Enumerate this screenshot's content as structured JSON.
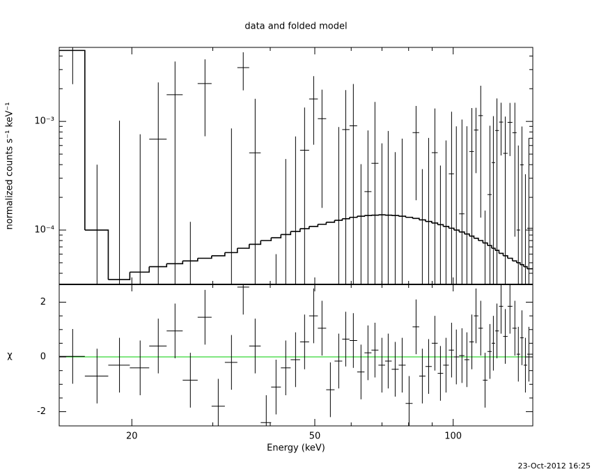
{
  "chart_data": [
    {
      "type": "errorbar-step",
      "title": "data and folded model",
      "ylabel": "normalized counts s⁻¹ keV⁻¹",
      "log_y": true,
      "ylim": [
        3.16e-05,
        0.0048
      ],
      "yticks": [
        {
          "value": 0.0001,
          "label": "10⁻⁴"
        },
        {
          "value": 0.001,
          "label": "10⁻³"
        }
      ],
      "yminor": [
        4e-05,
        5e-05,
        6e-05,
        7e-05,
        8e-05,
        9e-05,
        0.0002,
        0.0003,
        0.0004,
        0.0005,
        0.0006,
        0.0007,
        0.0008,
        0.0009,
        0.002,
        0.003,
        0.004
      ],
      "color": "#000000",
      "x": [
        14.87,
        16.8,
        18.8,
        20.85,
        22.83,
        24.83,
        26.81,
        28.85,
        30.83,
        32.94,
        34.94,
        37.09,
        39.21,
        41.18,
        43.23,
        45.41,
        47.51,
        49.72,
        51.84,
        54.06,
        56.37,
        58.38,
        60.65,
        63.02,
        65.26,
        67.58,
        69.98,
        72.22,
        74.79,
        77.45,
        80.19,
        83.04,
        85.68,
        88.43,
        91.24,
        93.82,
        96.47,
        99.2,
        101.6,
        104.5,
        107.1,
        109.8,
        112.1,
        114.8,
        117.3,
        120.2,
        122.3,
        124.5,
        127.1,
        129.8,
        132.9,
        136.2,
        138.6,
        141.1,
        143.6,
        146.1
      ],
      "rate": [
        0.0045,
        -0.0006,
        -0.000385,
        -0.000439,
        0.000686,
        0.00176,
        -0.000331,
        0.00223,
        -0.000158,
        -0.000138,
        0.00313,
        0.000514,
        -0.00016,
        -0.0002,
        -0.000149,
        2.7e-05,
        0.000543,
        0.00161,
        0.00106,
        -0.000482,
        -1.2e-05,
        0.000842,
        0.000911,
        -0.000196,
        0.000226,
        0.000412,
        -7.2e-05,
        1.7e-05,
        -0.000179,
        -0.000106,
        -0.000379,
        0.000788,
        -0.000436,
        -0.000195,
        0.000516,
        -0.000308,
        -0.000132,
        0.000329,
        0.0001,
        0.000141,
        2e-06,
        0.000528,
        0.000834,
        0.00113,
        -0.000349,
        0.000212,
        0.000418,
        0.000825,
        0.000986,
        0.000508,
        0.00098,
        0.000787,
        0.0001,
        0.000398,
        -7.4e-05,
        0.000104
      ],
      "rate_err": [
        0.0023,
        0.001,
        0.0014,
        0.0012,
        0.0016,
        0.0018,
        0.00045,
        0.0015,
        0.00012,
        0.001,
        0.0012,
        0.0011,
        0.0001,
        0.00026,
        0.0006,
        0.0007,
        0.0008,
        0.001,
        0.0009,
        0.0005,
        0.0009,
        0.0011,
        0.0013,
        0.0006,
        0.0006,
        0.0011,
        0.0007,
        0.0008,
        0.0007,
        0.0008,
        0.0003,
        0.0006,
        0.0008,
        0.0009,
        0.0008,
        0.0007,
        0.0008,
        0.0009,
        0.0008,
        0.0009,
        0.0009,
        0.0008,
        0.0005,
        0.001,
        0.0005,
        0.0007,
        0.0007,
        0.0008,
        0.0005,
        0.0006,
        0.0005,
        0.0007,
        0.0005,
        0.0005,
        0.0004,
        0.0006
      ],
      "model": [
        0.0045,
        0.0001,
        3.5e-05,
        4.1e-05,
        4.6e-05,
        4.9e-05,
        5.2e-05,
        5.5e-05,
        5.8e-05,
        6.2e-05,
        6.8e-05,
        7.4e-05,
        8e-05,
        8.5e-05,
        9.1e-05,
        9.7e-05,
        0.000103,
        0.000108,
        0.000113,
        0.000118,
        0.000123,
        0.000127,
        0.000131,
        0.000134,
        0.000136,
        0.000137,
        0.000138,
        0.000137,
        0.000136,
        0.000134,
        0.000131,
        0.000128,
        0.000124,
        0.00012,
        0.000116,
        0.000112,
        0.000108,
        0.000104,
        0.0001,
        9.6e-05,
        9.2e-05,
        8.8e-05,
        8.4e-05,
        8e-05,
        7.6e-05,
        7.2e-05,
        6.8e-05,
        6.5e-05,
        6.1e-05,
        5.8e-05,
        5.5e-05,
        5.2e-05,
        5e-05,
        4.8e-05,
        4.6e-05,
        4.4e-05
      ]
    },
    {
      "type": "residual",
      "ylabel": "χ",
      "xlabel": "Energy (keV)",
      "log_x": true,
      "xlim": [
        13.9,
        149
      ],
      "xticks": [
        20,
        50,
        100
      ],
      "xminor": [
        30,
        40,
        60,
        70,
        80,
        90
      ],
      "ylim": [
        -2.52,
        2.65
      ],
      "yticks": [
        -2,
        0,
        2
      ],
      "yminor": [
        -1.5,
        -1,
        -0.5,
        0.5,
        1,
        1.5
      ],
      "reference_line": {
        "value": 0,
        "color": "#00cc00"
      },
      "chi_error": 1,
      "color": "#000000",
      "chi": [
        0.02,
        -0.7,
        -0.3,
        -0.4,
        0.4,
        0.95,
        -0.85,
        1.45,
        -1.8,
        -0.2,
        2.55,
        0.4,
        -2.4,
        -1.1,
        -0.4,
        -0.1,
        0.55,
        1.5,
        1.05,
        -1.2,
        -0.15,
        0.65,
        0.6,
        -0.55,
        0.15,
        0.25,
        -0.3,
        -0.15,
        -0.45,
        -0.3,
        -1.7,
        1.1,
        -0.7,
        -0.35,
        0.5,
        -0.6,
        -0.3,
        0.25,
        0.0,
        0.05,
        -0.1,
        0.55,
        1.5,
        1.05,
        -0.85,
        0.2,
        0.5,
        0.95,
        1.85,
        0.75,
        1.85,
        1.05,
        0.1,
        0.7,
        -0.3,
        0.1
      ]
    },
    {
      "type": "timestamp",
      "text": "23-Oct-2012 16:25"
    }
  ]
}
